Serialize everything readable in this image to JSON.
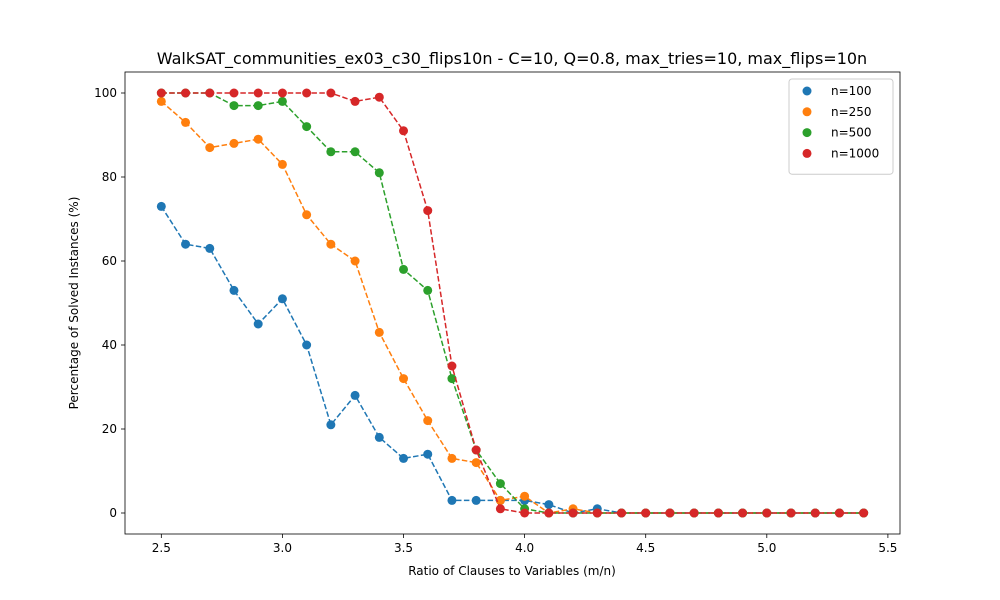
{
  "chart_data": {
    "type": "line",
    "title": "WalkSAT_communities_ex03_c30_flips10n - C=10, Q=0.8, max_tries=10, max_flips=10n",
    "xlabel": "Ratio of Clauses to Variables (m/n)",
    "ylabel": "Percentage of Solved Instances (%)",
    "xlim": [
      2.35,
      5.55
    ],
    "ylim": [
      -5,
      105
    ],
    "xticks": [
      "2.5",
      "3.0",
      "3.5",
      "4.0",
      "4.5",
      "5.0",
      "5.5"
    ],
    "yticks": [
      "0",
      "20",
      "40",
      "60",
      "80",
      "100"
    ],
    "grid": false,
    "legend_position": "top-right",
    "x": [
      2.5,
      2.6,
      2.7,
      2.8,
      2.9,
      3.0,
      3.1,
      3.2,
      3.3,
      3.4,
      3.5,
      3.6,
      3.7,
      3.8,
      3.9,
      4.0,
      4.1,
      4.2,
      4.3,
      4.4,
      4.5,
      4.6,
      4.7,
      4.8,
      4.9,
      5.0,
      5.1,
      5.2,
      5.3,
      5.4
    ],
    "series": [
      {
        "name": "n=100",
        "color": "#1f77b4",
        "values": [
          73,
          64,
          63,
          53,
          45,
          51,
          40,
          21,
          28,
          18,
          13,
          14,
          3,
          3,
          3,
          3,
          2,
          0,
          1,
          0,
          0,
          0,
          0,
          0,
          0,
          0,
          0,
          0,
          0,
          0
        ]
      },
      {
        "name": "n=250",
        "color": "#ff7f0e",
        "values": [
          98,
          93,
          87,
          88,
          89,
          83,
          71,
          64,
          60,
          43,
          32,
          22,
          13,
          12,
          3,
          4,
          0,
          1,
          0,
          0,
          0,
          0,
          0,
          0,
          0,
          0,
          0,
          0,
          0,
          0
        ]
      },
      {
        "name": "n=500",
        "color": "#2ca02c",
        "values": [
          100,
          100,
          100,
          97,
          97,
          98,
          92,
          86,
          86,
          81,
          58,
          53,
          32,
          15,
          7,
          1,
          0,
          0,
          0,
          0,
          0,
          0,
          0,
          0,
          0,
          0,
          0,
          0,
          0,
          0
        ]
      },
      {
        "name": "n=1000",
        "color": "#d62728",
        "values": [
          100,
          100,
          100,
          100,
          100,
          100,
          100,
          100,
          98,
          99,
          91,
          72,
          35,
          15,
          1,
          0,
          0,
          0,
          0,
          0,
          0,
          0,
          0,
          0,
          0,
          0,
          0,
          0,
          0,
          0
        ]
      }
    ]
  }
}
